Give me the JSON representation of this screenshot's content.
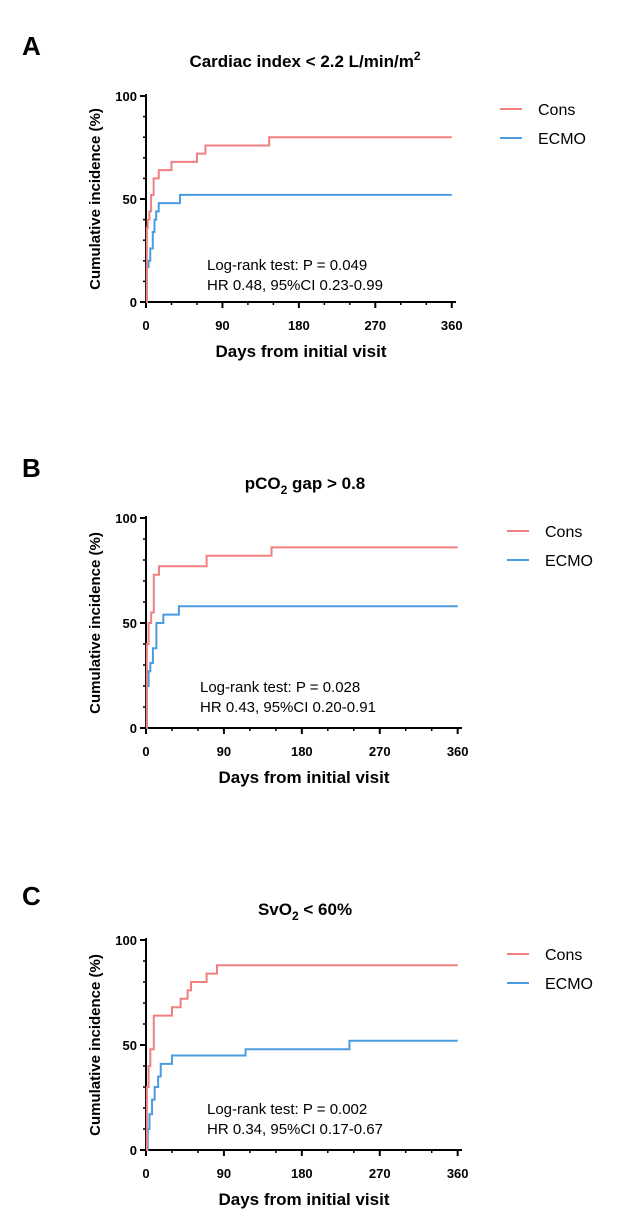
{
  "chart_data": [
    {
      "type": "line",
      "step": true,
      "panel_label": "A",
      "title": "Cardiac index < 2.2 L/min/m",
      "title_superscript": "2",
      "xlabel": "Days from initial visit",
      "ylabel": "Cumulative incidence (%)",
      "xlim": [
        0,
        365
      ],
      "ylim": [
        0,
        100
      ],
      "xticks": [
        0,
        90,
        180,
        270,
        360
      ],
      "yticks": [
        0,
        50,
        100
      ],
      "legend_position": "top-right",
      "series": [
        {
          "name": "Cons",
          "color": "#f08080",
          "x": [
            0,
            1,
            2,
            4,
            6,
            9,
            15,
            30,
            50,
            60,
            70,
            145,
            160,
            360
          ],
          "y": [
            0,
            36,
            40,
            44,
            52,
            60,
            64,
            68,
            68,
            72,
            76,
            80,
            80,
            80
          ]
        },
        {
          "name": "ECMO",
          "color": "#4a9be0",
          "x": [
            0,
            1,
            3,
            5,
            8,
            10,
            12,
            15,
            40,
            50,
            360
          ],
          "y": [
            0,
            17,
            20,
            26,
            34,
            40,
            44,
            48,
            52,
            52,
            52
          ]
        }
      ],
      "annotation": [
        "Log-rank test: P = 0.049",
        "HR 0.48, 95%CI 0.23-0.99"
      ]
    },
    {
      "type": "line",
      "step": true,
      "panel_label": "B",
      "title": "pCO",
      "title_subscript": "2",
      "title_suffix": " gap > 0.8",
      "xlabel": "Days from initial visit",
      "ylabel": "Cumulative incidence (%)",
      "xlim": [
        0,
        365
      ],
      "ylim": [
        0,
        100
      ],
      "xticks": [
        0,
        90,
        180,
        270,
        360
      ],
      "yticks": [
        0,
        50,
        100
      ],
      "legend_position": "top-right",
      "series": [
        {
          "name": "Cons",
          "color": "#f08080",
          "x": [
            0,
            1,
            3,
            6,
            9,
            15,
            70,
            145,
            360
          ],
          "y": [
            0,
            40,
            50,
            55,
            73,
            77,
            82,
            86,
            86
          ]
        },
        {
          "name": "ECMO",
          "color": "#4a9be0",
          "x": [
            0,
            1,
            3,
            5,
            8,
            12,
            20,
            38,
            360
          ],
          "y": [
            0,
            20,
            27,
            31,
            38,
            50,
            54,
            58,
            58
          ]
        }
      ],
      "annotation": [
        "Log-rank test: P = 0.028",
        "HR 0.43, 95%CI 0.20-0.91"
      ]
    },
    {
      "type": "line",
      "step": true,
      "panel_label": "C",
      "title": "SvO",
      "title_subscript": "2",
      "title_suffix": " < 60%",
      "xlabel": "Days from initial visit",
      "ylabel": "Cumulative incidence (%)",
      "xlim": [
        0,
        365
      ],
      "ylim": [
        0,
        100
      ],
      "xticks": [
        0,
        90,
        180,
        270,
        360
      ],
      "yticks": [
        0,
        50,
        100
      ],
      "legend_position": "top-right",
      "series": [
        {
          "name": "Cons",
          "color": "#f08080",
          "x": [
            0,
            1,
            3,
            5,
            9,
            30,
            40,
            48,
            52,
            70,
            82,
            360
          ],
          "y": [
            0,
            30,
            40,
            48,
            64,
            68,
            72,
            76,
            80,
            84,
            88,
            88
          ]
        },
        {
          "name": "ECMO",
          "color": "#4a9be0",
          "x": [
            0,
            2,
            4,
            7,
            10,
            14,
            17,
            30,
            115,
            235,
            360
          ],
          "y": [
            0,
            10,
            17,
            24,
            30,
            35,
            41,
            45,
            48,
            52,
            52
          ]
        }
      ],
      "annotation": [
        "Log-rank test: P = 0.002",
        "HR 0.34, 95%CI 0.17-0.67"
      ]
    }
  ]
}
